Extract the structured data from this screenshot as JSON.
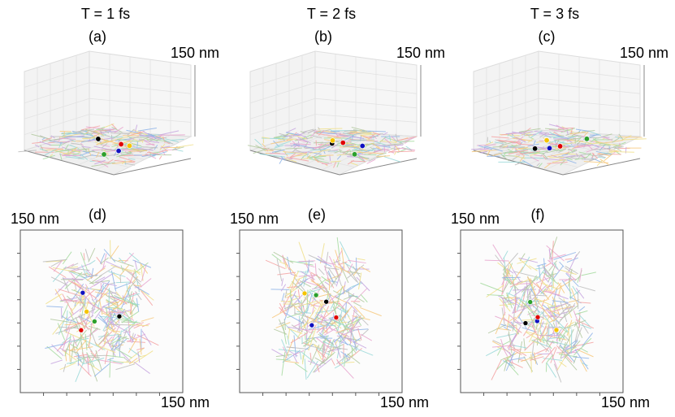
{
  "perspective_views": [
    {
      "time": "T = 1 fs",
      "label": "(a)",
      "scale": "150 nm"
    },
    {
      "time": "T = 2 fs",
      "label": "(b)",
      "scale": "150 nm"
    },
    {
      "time": "T = 3 fs",
      "label": "(c)",
      "scale": "150 nm"
    }
  ],
  "top_views": [
    {
      "label": "(d)",
      "scale_y": "150 nm",
      "scale_x": "150 nm"
    },
    {
      "label": "(e)",
      "scale_y": "150 nm",
      "scale_x": "150 nm"
    },
    {
      "label": "(f)",
      "scale_y": "150 nm",
      "scale_x": "150 nm"
    }
  ]
}
